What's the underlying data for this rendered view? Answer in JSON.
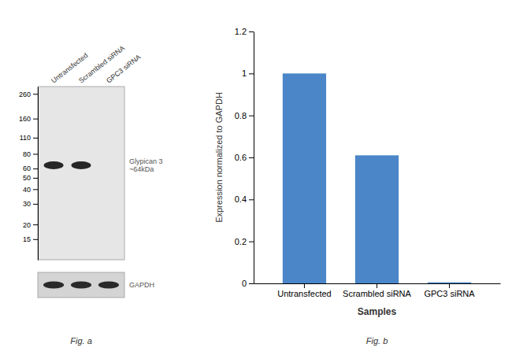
{
  "chart_data": [
    {
      "type": "blot",
      "title": "Fig. a",
      "categories": [
        "Untransfected",
        "Scrambled siRNA",
        "GPC3 siRNA"
      ],
      "series": [
        {
          "name": "Glypican 3\n~64kDa",
          "values": [
            64,
            64,
            null
          ]
        }
      ],
      "annotations": [
        "GAPDH"
      ],
      "log": "y",
      "ylim": [
        10,
        300
      ],
      "yticks": [
        260,
        160,
        110,
        80,
        60,
        50,
        40,
        30,
        20,
        15
      ]
    },
    {
      "type": "bar",
      "title": "Fig. b",
      "categories": [
        "Untransfected",
        "Scrambled siRNA",
        "GPC3 siRNA"
      ],
      "values": [
        1.0,
        0.61,
        0.005
      ],
      "color": "#4a86c8",
      "xlabel": "Samples",
      "ylabel": "Expression normalized to GAPDH",
      "ylim": [
        0,
        1.2
      ],
      "yticks": [
        0,
        0.2,
        0.4,
        0.6,
        0.8,
        1,
        1.2
      ]
    }
  ]
}
